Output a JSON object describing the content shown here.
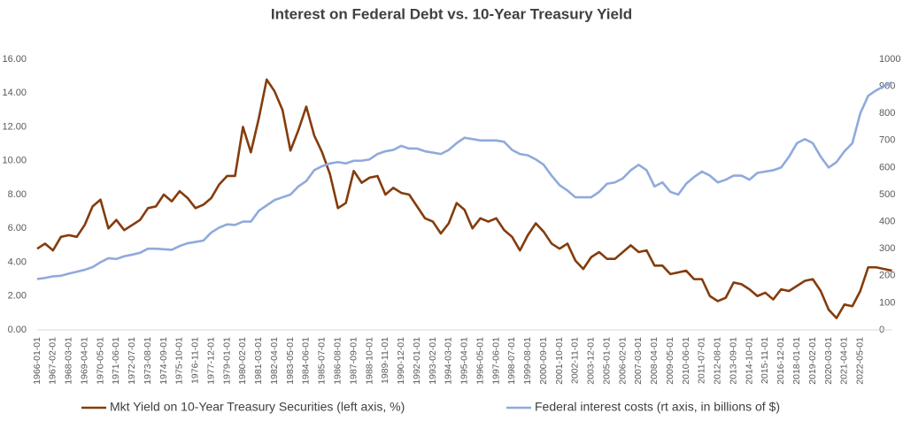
{
  "chart_data": {
    "type": "line",
    "title": "Interest on Federal Debt vs. 10-Year Treasury Yield",
    "categories": [
      "1966-01-01",
      null,
      "1967-02-01",
      null,
      "1968-03-01",
      null,
      "1969-04-01",
      null,
      "1970-05-01",
      null,
      "1971-06-01",
      null,
      "1972-07-01",
      null,
      "1973-08-01",
      null,
      "1974-09-01",
      null,
      "1975-10-01",
      null,
      "1976-11-01",
      null,
      "1977-12-01",
      null,
      "1979-01-01",
      null,
      "1980-02-01",
      null,
      "1981-03-01",
      null,
      "1982-04-01",
      null,
      "1983-05-01",
      null,
      "1984-06-01",
      null,
      "1985-07-01",
      null,
      "1986-08-01",
      null,
      "1987-09-01",
      null,
      "1988-10-01",
      null,
      "1989-11-01",
      null,
      "1990-12-01",
      null,
      "1992-01-01",
      null,
      "1993-02-01",
      null,
      "1994-03-01",
      null,
      "1995-04-01",
      null,
      "1996-05-01",
      null,
      "1997-06-01",
      null,
      "1998-07-01",
      null,
      "1999-08-01",
      null,
      "2000-09-01",
      null,
      "2001-10-01",
      null,
      "2002-11-01",
      null,
      "2003-12-01",
      null,
      "2005-01-01",
      null,
      "2006-02-01",
      null,
      "2007-03-01",
      null,
      "2008-04-01",
      null,
      "2009-05-01",
      null,
      "2010-06-01",
      null,
      "2011-07-01",
      null,
      "2012-08-01",
      null,
      "2013-09-01",
      null,
      "2014-10-01",
      null,
      "2015-11-01",
      null,
      "2016-12-01",
      null,
      "2018-01-01",
      null,
      "2019-02-01",
      null,
      "2020-03-01",
      null,
      "2021-04-01",
      null,
      "2022-05-01",
      null,
      null,
      null,
      null
    ],
    "series": [
      {
        "name": "Mkt Yield on 10-Year Treasury Securities (left axis, %)",
        "color": "#843c0c",
        "values": [
          4.8,
          5.1,
          4.7,
          5.5,
          5.6,
          5.5,
          6.2,
          7.3,
          7.7,
          6.0,
          6.5,
          5.9,
          6.2,
          6.5,
          7.2,
          7.3,
          8.0,
          7.6,
          8.2,
          7.8,
          7.2,
          7.4,
          7.8,
          8.6,
          9.1,
          9.1,
          12.0,
          10.5,
          12.5,
          14.8,
          14.1,
          13.0,
          10.6,
          11.8,
          13.2,
          11.5,
          10.5,
          9.2,
          7.2,
          7.5,
          9.4,
          8.7,
          9.0,
          9.1,
          8.0,
          8.4,
          8.1,
          8.0,
          7.3,
          6.6,
          6.4,
          5.7,
          6.3,
          7.5,
          7.1,
          6.0,
          6.6,
          6.4,
          6.6,
          5.9,
          5.5,
          4.7,
          5.6,
          6.3,
          5.8,
          5.1,
          4.8,
          5.1,
          4.1,
          3.6,
          4.3,
          4.6,
          4.2,
          4.2,
          4.6,
          5.0,
          4.6,
          4.7,
          3.8,
          3.8,
          3.3,
          3.4,
          3.5,
          3.0,
          3.0,
          2.0,
          1.7,
          1.9,
          2.8,
          2.7,
          2.4,
          2.0,
          2.2,
          1.8,
          2.4,
          2.3,
          2.6,
          2.9,
          3.0,
          2.3,
          1.2,
          0.7,
          1.5,
          1.4,
          2.3,
          3.7,
          3.7,
          3.6,
          3.5
        ]
      },
      {
        "name": "Federal interest costs (rt axis, in billions of $)",
        "color": "#8faadc",
        "axis": "y2",
        "values": [
          188,
          192,
          198,
          200,
          208,
          215,
          222,
          232,
          250,
          265,
          262,
          272,
          278,
          285,
          300,
          300,
          298,
          296,
          310,
          320,
          325,
          330,
          360,
          378,
          390,
          388,
          400,
          400,
          440,
          460,
          480,
          490,
          500,
          530,
          550,
          590,
          605,
          615,
          620,
          615,
          625,
          625,
          630,
          650,
          660,
          665,
          680,
          670,
          670,
          660,
          655,
          650,
          665,
          690,
          710,
          705,
          700,
          700,
          700,
          695,
          665,
          650,
          645,
          630,
          610,
          570,
          535,
          515,
          490,
          490,
          490,
          510,
          540,
          545,
          560,
          590,
          610,
          590,
          530,
          545,
          510,
          500,
          540,
          565,
          585,
          570,
          545,
          555,
          570,
          570,
          555,
          580,
          585,
          590,
          600,
          640,
          690,
          705,
          690,
          640,
          600,
          620,
          660,
          690,
          800,
          865,
          885,
          900,
          915
        ]
      }
    ],
    "ylim": [
      0,
      16
    ],
    "yticks": [
      {
        "value": 0,
        "label": "0.00"
      },
      {
        "value": 2,
        "label": "2.00"
      },
      {
        "value": 4,
        "label": "4.00"
      },
      {
        "value": 6,
        "label": "6.00"
      },
      {
        "value": 8,
        "label": "8.00"
      },
      {
        "value": 10,
        "label": "10.00"
      },
      {
        "value": 12,
        "label": "12.00"
      },
      {
        "value": 14,
        "label": "14.00"
      },
      {
        "value": 16,
        "label": "16.00"
      }
    ],
    "y2lim": [
      0,
      1000
    ],
    "y2ticks": [
      0,
      100,
      200,
      300,
      400,
      500,
      600,
      700,
      800,
      900,
      1000
    ],
    "grid": false,
    "legend": "bottom"
  }
}
